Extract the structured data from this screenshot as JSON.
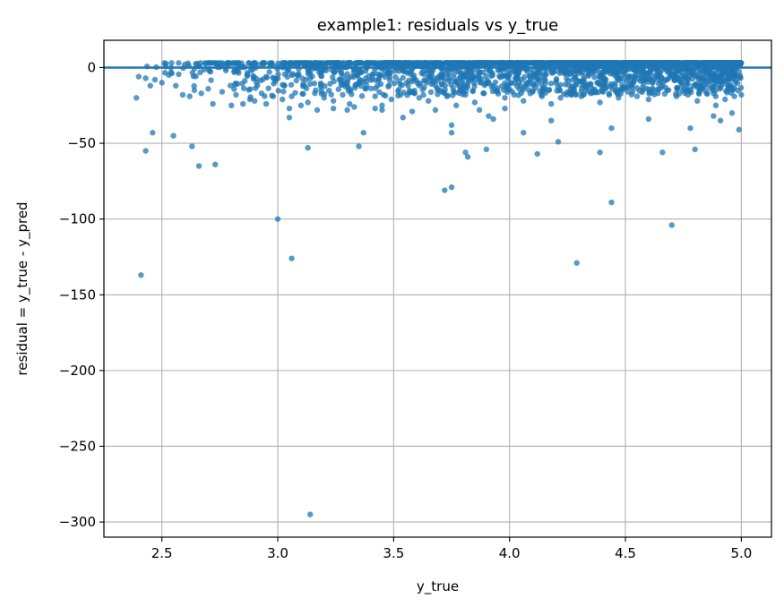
{
  "chart_data": {
    "type": "scatter",
    "title": "example1: residuals vs y_true",
    "xlabel": "y_true",
    "ylabel": "residual = y_true - y_pred",
    "xlim": [
      2.25,
      5.13
    ],
    "ylim": [
      -310,
      18
    ],
    "xticks": [
      2.5,
      3.0,
      3.5,
      4.0,
      4.5,
      5.0
    ],
    "xtick_labels": [
      "2.5",
      "3.0",
      "3.5",
      "4.0",
      "4.5",
      "5.0"
    ],
    "yticks": [
      0,
      -50,
      -100,
      -150,
      -200,
      -250,
      -300
    ],
    "ytick_labels": [
      "0",
      "−50",
      "−100",
      "−150",
      "−200",
      "−250",
      "−300"
    ],
    "grid": true,
    "reference_line": {
      "y": 0
    },
    "marker_color": "#1f77b4",
    "marker_alpha": 0.75,
    "dense_band": {
      "x_range": [
        2.4,
        5.0
      ],
      "y_range": [
        -20,
        3
      ],
      "approx_count": 2500
    },
    "series": [
      {
        "points": [
          [
            2.39,
            -20
          ],
          [
            2.4,
            -6
          ],
          [
            2.43,
            -7
          ],
          [
            2.45,
            -12
          ],
          [
            2.47,
            -8
          ],
          [
            2.5,
            -10
          ],
          [
            2.53,
            -5
          ],
          [
            2.56,
            -12
          ],
          [
            2.59,
            -18
          ],
          [
            2.62,
            -19
          ],
          [
            2.64,
            -15
          ],
          [
            2.67,
            -17
          ],
          [
            2.7,
            -14
          ],
          [
            2.72,
            -24
          ],
          [
            2.76,
            -16
          ],
          [
            2.8,
            -25
          ],
          [
            2.82,
            -18
          ],
          [
            2.85,
            -24
          ],
          [
            2.88,
            -21
          ],
          [
            2.9,
            -22
          ],
          [
            2.93,
            -17
          ],
          [
            2.95,
            -24
          ],
          [
            2.98,
            -19
          ],
          [
            3.02,
            -21
          ],
          [
            3.06,
            -19
          ],
          [
            3.1,
            -25
          ],
          [
            3.13,
            -23
          ],
          [
            3.16,
            -17
          ],
          [
            3.2,
            -20
          ],
          [
            3.24,
            -22
          ],
          [
            3.28,
            -18
          ],
          [
            3.31,
            -24
          ],
          [
            3.33,
            -26
          ],
          [
            3.38,
            -14
          ],
          [
            3.42,
            -19
          ],
          [
            3.45,
            -25
          ],
          [
            3.49,
            -21
          ],
          [
            3.53,
            -18
          ],
          [
            3.58,
            -16
          ],
          [
            3.61,
            -20
          ],
          [
            3.65,
            -22
          ],
          [
            3.69,
            -15
          ],
          [
            3.73,
            -19
          ],
          [
            3.77,
            -25
          ],
          [
            3.81,
            -18
          ],
          [
            3.85,
            -23
          ],
          [
            3.89,
            -17
          ],
          [
            3.94,
            -15
          ],
          [
            3.98,
            -20
          ],
          [
            4.02,
            -18
          ],
          [
            4.06,
            -22
          ],
          [
            4.1,
            -16
          ],
          [
            4.14,
            -19
          ],
          [
            4.18,
            -24
          ],
          [
            4.22,
            -20
          ],
          [
            4.27,
            -15
          ],
          [
            4.31,
            -19
          ],
          [
            4.35,
            -17
          ],
          [
            4.39,
            -23
          ],
          [
            4.43,
            -18
          ],
          [
            4.47,
            -20
          ],
          [
            4.51,
            -16
          ],
          [
            4.55,
            -19
          ],
          [
            4.6,
            -21
          ],
          [
            4.64,
            -17
          ],
          [
            4.68,
            -15
          ],
          [
            4.72,
            -19
          ],
          [
            4.77,
            -18
          ],
          [
            4.81,
            -22
          ],
          [
            4.85,
            -17
          ],
          [
            4.89,
            -19
          ],
          [
            4.93,
            -21
          ],
          [
            4.97,
            -19
          ],
          [
            5.0,
            -18
          ],
          [
            2.46,
            -43
          ],
          [
            2.43,
            -55
          ],
          [
            2.55,
            -45
          ],
          [
            2.63,
            -52
          ],
          [
            2.66,
            -65
          ],
          [
            2.73,
            -64
          ],
          [
            2.41,
            -137
          ],
          [
            3.0,
            -100
          ],
          [
            3.06,
            -126
          ],
          [
            3.05,
            -33
          ],
          [
            3.05,
            -27
          ],
          [
            3.13,
            -53
          ],
          [
            3.14,
            -295
          ],
          [
            3.17,
            -28
          ],
          [
            3.24,
            -27
          ],
          [
            3.3,
            -28
          ],
          [
            3.35,
            -52
          ],
          [
            3.37,
            -43
          ],
          [
            3.42,
            -27
          ],
          [
            3.45,
            -28
          ],
          [
            3.54,
            -33
          ],
          [
            3.58,
            -29
          ],
          [
            3.68,
            -28
          ],
          [
            3.72,
            -81
          ],
          [
            3.75,
            -79
          ],
          [
            3.75,
            -38
          ],
          [
            3.75,
            -43
          ],
          [
            3.81,
            -56
          ],
          [
            3.82,
            -59
          ],
          [
            3.87,
            -28
          ],
          [
            3.9,
            -54
          ],
          [
            3.91,
            -32
          ],
          [
            3.93,
            -34
          ],
          [
            3.98,
            -27
          ],
          [
            4.06,
            -43
          ],
          [
            4.12,
            -57
          ],
          [
            4.18,
            -35
          ],
          [
            4.21,
            -49
          ],
          [
            4.29,
            -129
          ],
          [
            4.39,
            -56
          ],
          [
            4.44,
            -40
          ],
          [
            4.44,
            -89
          ],
          [
            4.6,
            -34
          ],
          [
            4.66,
            -56
          ],
          [
            4.7,
            -104
          ],
          [
            4.78,
            -40
          ],
          [
            4.8,
            -54
          ],
          [
            4.89,
            -25
          ],
          [
            4.88,
            -32
          ],
          [
            4.91,
            -35
          ],
          [
            4.96,
            -30
          ],
          [
            4.99,
            -41
          ]
        ]
      }
    ]
  }
}
